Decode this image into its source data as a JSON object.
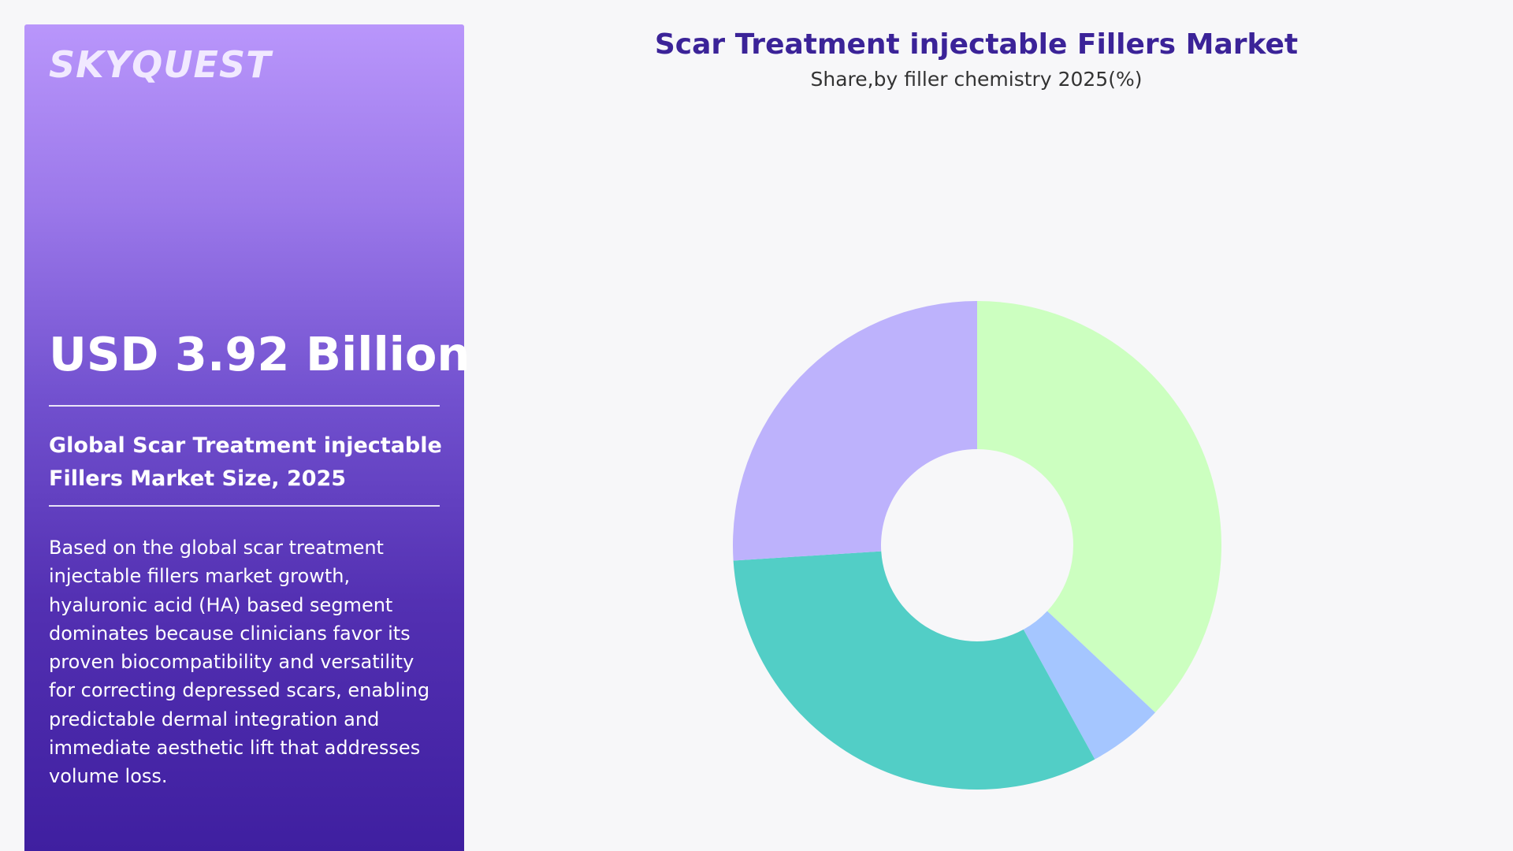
{
  "panel": {
    "logo": "SKYQUEST",
    "market_value": "USD 3.92 Billion",
    "market_heading": "Global Scar Treatment injectable Fillers Market Size, 2025",
    "description": "Based on the global scar treatment injectable fillers market growth, hyaluronic acid (HA) based segment dominates because clinicians favor its proven biocompatibility and versatility for correcting depressed scars, enabling predictable dermal integration and immediate aesthetic lift that addresses volume loss."
  },
  "colors": {
    "panel_top": "#b996fb",
    "panel_bottom": "#3f1fa0",
    "title": "#3b2398",
    "background": "#f7f7f9"
  },
  "chart_data": {
    "type": "pie",
    "title": "Scar Treatment injectable Fillers Market",
    "subtitle": "Share,by filler chemistry 2025(%)",
    "donut": true,
    "legend": "none",
    "slices": [
      {
        "value": 37,
        "color": "#ccffc0"
      },
      {
        "value": 5,
        "color": "#a5c6ff"
      },
      {
        "value": 32,
        "color": "#52cec6"
      },
      {
        "value": 26,
        "color": "#bdb2fc"
      }
    ]
  }
}
